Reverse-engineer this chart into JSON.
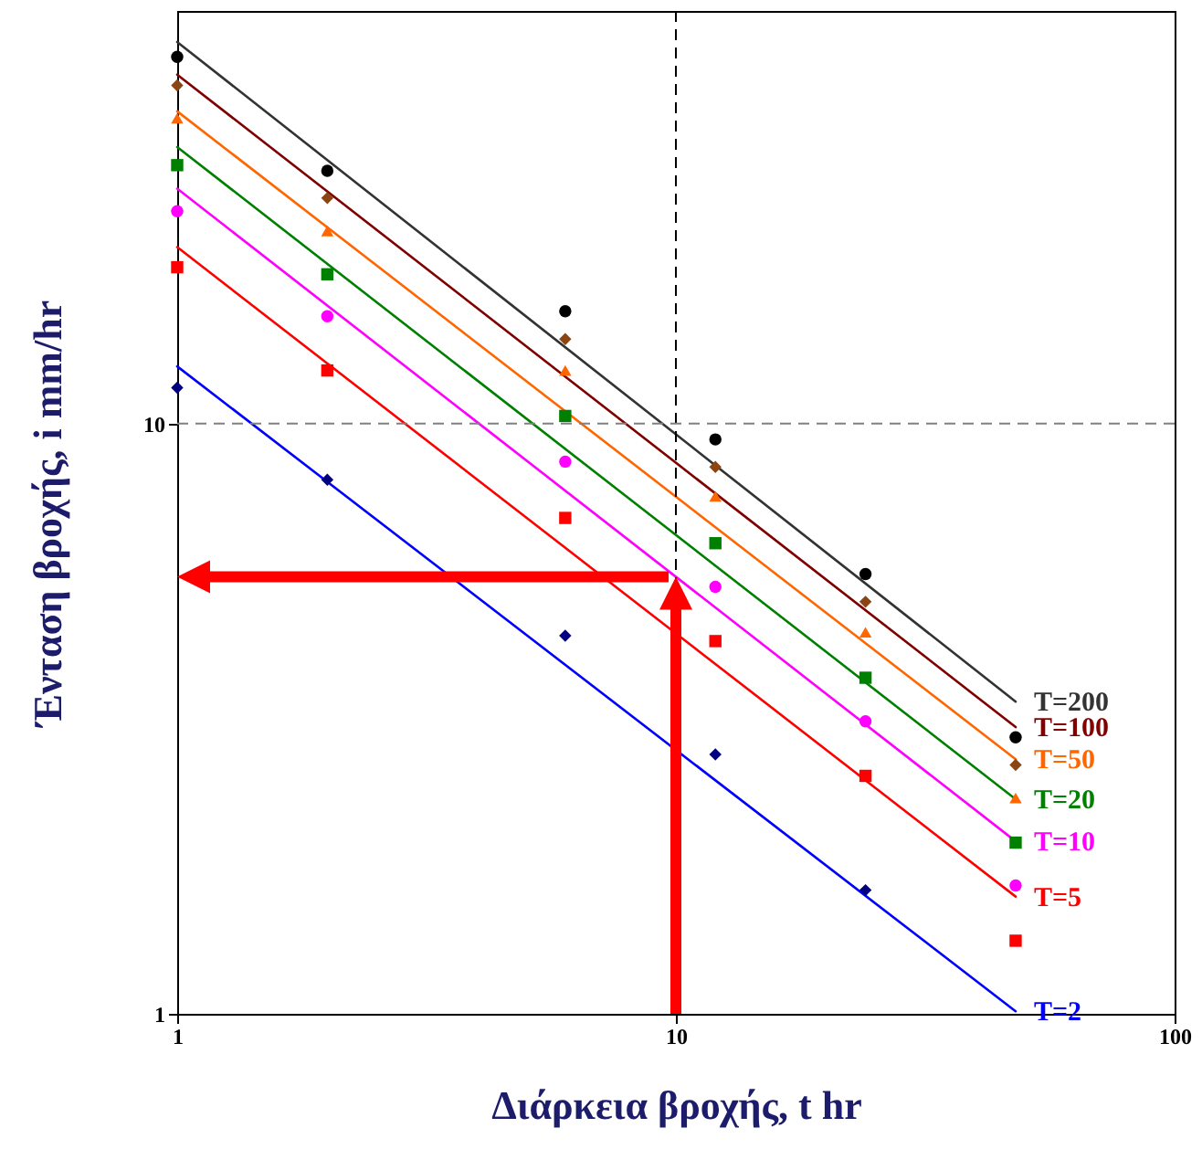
{
  "chart_data": {
    "type": "scatter",
    "legend": "bottom right",
    "xlabel": "Διάρκεια βροχής, t hr",
    "ylabel": "Ένταση βροχής, i mm/hr",
    "log": "xy",
    "grid": false,
    "xlim": [
      1,
      100
    ],
    "xticks": [
      1,
      10,
      100
    ],
    "ylim": [
      1,
      50
    ],
    "yticks": [
      1,
      10
    ],
    "ref_lines": [
      {
        "axis": "x",
        "value": 10,
        "color": "#000000",
        "line_style": "dashed"
      },
      {
        "axis": "y",
        "value": 10,
        "color": "#808080",
        "line_style": "dashed"
      }
    ],
    "series": [
      {
        "color": "#000000",
        "marker": "circle",
        "x": [
          1,
          2,
          6,
          12,
          24,
          48
        ],
        "values": [
          41.8,
          26.8,
          15.5,
          9.4,
          5.56,
          2.94
        ]
      },
      {
        "color": "#8b4513",
        "marker": "diamond",
        "x": [
          1,
          2,
          6,
          12,
          24,
          48
        ],
        "values": [
          37.4,
          24.1,
          13.9,
          8.44,
          4.99,
          2.64
        ]
      },
      {
        "color": "#ff6600",
        "marker": "triangle",
        "x": [
          1,
          2,
          6,
          12,
          24,
          48
        ],
        "values": [
          32.9,
          21.2,
          12.3,
          7.53,
          4.43,
          2.32
        ]
      },
      {
        "color": "#008000",
        "marker": "square",
        "x": [
          1,
          2,
          6,
          12,
          24,
          48
        ],
        "values": [
          27.4,
          17.9,
          10.3,
          6.27,
          3.71,
          1.95
        ]
      },
      {
        "color": "#ff00ff",
        "marker": "circle",
        "x": [
          1,
          2,
          6,
          12,
          24,
          48
        ],
        "values": [
          22.9,
          15.2,
          8.62,
          5.29,
          3.13,
          1.65
        ]
      },
      {
        "color": "#ff0000",
        "marker": "square",
        "x": [
          1,
          2,
          6,
          12,
          24,
          48
        ],
        "values": [
          18.4,
          12.3,
          6.92,
          4.28,
          2.53,
          1.33
        ]
      },
      {
        "color": "#000080",
        "marker": "diamond",
        "x": [
          1,
          2,
          6,
          12,
          24
        ],
        "values": [
          11.5,
          8.03,
          4.37,
          2.75,
          1.62
        ]
      },
      {
        "type": "line",
        "name": "T=200",
        "color": "#333333",
        "x": [
          1,
          48
        ],
        "values": [
          44.3,
          3.38
        ]
      },
      {
        "type": "line",
        "name": "T=100",
        "color": "#800000",
        "x": [
          1,
          48
        ],
        "values": [
          39.0,
          3.06
        ]
      },
      {
        "type": "line",
        "name": "T=50",
        "color": "#ff6600",
        "x": [
          1,
          48
        ],
        "values": [
          33.8,
          2.7
        ]
      },
      {
        "type": "line",
        "name": "T=20",
        "color": "#008000",
        "x": [
          1,
          48
        ],
        "values": [
          29.4,
          2.31
        ]
      },
      {
        "type": "line",
        "name": "T=10",
        "color": "#ff00ff",
        "x": [
          1,
          48
        ],
        "values": [
          25.0,
          1.96
        ]
      },
      {
        "type": "line",
        "name": "T=5",
        "color": "#ff0000",
        "x": [
          1,
          48
        ],
        "values": [
          19.9,
          1.58
        ]
      },
      {
        "type": "line",
        "name": "T=2",
        "color": "#0000ff",
        "x": [
          1,
          48
        ],
        "values": [
          12.5,
          1.01
        ]
      }
    ]
  }
}
